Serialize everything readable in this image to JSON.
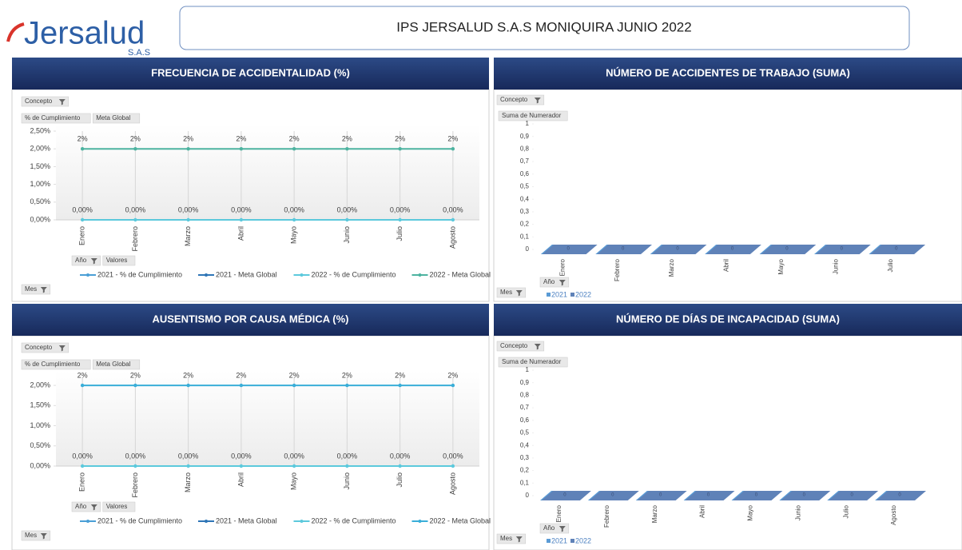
{
  "header": {
    "logo": "Jersalud",
    "logo_sub": "S.A.S",
    "title": "IPS JERSALUD S.A.S MONIQUIRA  JUNIO 2022"
  },
  "chart_data": [
    {
      "type": "line",
      "title": "FRECUENCIA DE ACCIDENTALIDAD (%)",
      "buttons": {
        "top": "Concepto",
        "fields": [
          "% de Cumplimiento",
          "Meta Global"
        ],
        "year": "Año",
        "values": "Valores",
        "month": "Mes"
      },
      "categories": [
        "Enero",
        "Febrero",
        "Marzo",
        "Abril",
        "Mayo",
        "Junio",
        "Julio",
        "Agosto"
      ],
      "ylim": [
        0,
        2.5
      ],
      "yticks": [
        {
          "value": 0,
          "label": "0,00%"
        },
        {
          "value": 0.5,
          "label": "0,50%"
        },
        {
          "value": 1,
          "label": "1,00%"
        },
        {
          "value": 1.5,
          "label": "1,50%"
        },
        {
          "value": 2,
          "label": "2,00%"
        },
        {
          "value": 2.5,
          "label": "2,50%"
        }
      ],
      "series": [
        {
          "name": "2021 - % de Cumplimiento",
          "color": "#4a9fd6",
          "values": [
            null,
            null,
            null,
            null,
            null,
            null,
            null,
            null
          ]
        },
        {
          "name": "2021 - Meta Global",
          "color": "#2e75b6",
          "values": [
            null,
            null,
            null,
            null,
            null,
            null,
            null,
            null
          ]
        },
        {
          "name": "2022 - % de Cumplimiento",
          "color": "#5cc9dc",
          "values": [
            0,
            0,
            0,
            0,
            0,
            0,
            0,
            0
          ],
          "value_labels": [
            "0,00%",
            "0,00%",
            "0,00%",
            "0,00%",
            "0,00%",
            "0,00%",
            "0,00%",
            "0,00%"
          ]
        },
        {
          "name": "2022 - Meta Global",
          "color": "#4db3a0",
          "values": [
            2,
            2,
            2,
            2,
            2,
            2,
            2,
            2
          ],
          "value_labels": [
            "2%",
            "2%",
            "2%",
            "2%",
            "2%",
            "2%",
            "2%",
            "2%"
          ]
        }
      ]
    },
    {
      "type": "bar",
      "title": "NÚMERO DE ACCIDENTES DE TRABAJO  (SUMA)",
      "buttons": {
        "top": "Concepto",
        "fields": [
          "Suma de Numerador"
        ],
        "year": "Año",
        "month": "Mes"
      },
      "categories": [
        "Enero",
        "Febrero",
        "Marzo",
        "Abril",
        "Mayo",
        "Junio",
        "Julio"
      ],
      "ylim": [
        0,
        1
      ],
      "yticks": [
        0,
        {
          "value": 0.1,
          "label": "0,1"
        },
        {
          "value": 0.2,
          "label": "0,2"
        },
        {
          "value": 0.3,
          "label": "0,3"
        },
        {
          "value": 0.4,
          "label": "0,4"
        },
        {
          "value": 0.5,
          "label": "0,5"
        },
        {
          "value": 0.6,
          "label": "0,6"
        },
        {
          "value": 0.7,
          "label": "0,7"
        },
        {
          "value": 0.8,
          "label": "0,8"
        },
        {
          "value": 0.9,
          "label": "0,9"
        },
        1
      ],
      "series": [
        {
          "name": "2021",
          "color": "#5b9bd5",
          "values": [
            0,
            0,
            0,
            0,
            0,
            0,
            0
          ]
        },
        {
          "name": "2022",
          "color": "#5f82b8",
          "values": [
            0,
            0,
            0,
            0,
            0,
            0,
            0
          ]
        }
      ]
    },
    {
      "type": "line",
      "title": "AUSENTISMO POR CAUSA MÉDICA (%)",
      "buttons": {
        "top": "Concepto",
        "fields": [
          "% de Cumplimiento",
          "Meta Global"
        ],
        "year": "Año",
        "values": "Valores",
        "month": "Mes"
      },
      "categories": [
        "Enero",
        "Febrero",
        "Marzo",
        "Abril",
        "Mayo",
        "Junio",
        "Julio",
        "Agosto"
      ],
      "ylim": [
        0,
        2.2
      ],
      "yticks": [
        {
          "value": 0,
          "label": "0,00%"
        },
        {
          "value": 0.5,
          "label": "0,50%"
        },
        {
          "value": 1,
          "label": "1,00%"
        },
        {
          "value": 1.5,
          "label": "1,50%"
        },
        {
          "value": 2,
          "label": "2,00%"
        }
      ],
      "series": [
        {
          "name": "2021 - % de Cumplimiento",
          "color": "#4a9fd6",
          "values": [
            null,
            null,
            null,
            null,
            null,
            null,
            null,
            null
          ]
        },
        {
          "name": "2021 - Meta Global",
          "color": "#2e75b6",
          "values": [
            null,
            null,
            null,
            null,
            null,
            null,
            null,
            null
          ]
        },
        {
          "name": "2022 - % de Cumplimiento",
          "color": "#5cc9dc",
          "values": [
            0,
            0,
            0,
            0,
            0,
            0,
            0,
            0
          ],
          "value_labels": [
            "0,00%",
            "0,00%",
            "0,00%",
            "0,00%",
            "0,00%",
            "0,00%",
            "0,00%",
            "0,00%"
          ]
        },
        {
          "name": "2022 - Meta Global",
          "color": "#3aaed8",
          "values": [
            2,
            2,
            2,
            2,
            2,
            2,
            2,
            2
          ],
          "value_labels": [
            "2%",
            "2%",
            "2%",
            "2%",
            "2%",
            "2%",
            "2%",
            "2%"
          ]
        }
      ]
    },
    {
      "type": "bar",
      "title": "NÚMERO DE DÍAS DE INCAPACIDAD (SUMA)",
      "buttons": {
        "top": "Concepto",
        "fields": [
          "Suma de Numerador"
        ],
        "year": "Año",
        "month": "Mes"
      },
      "categories": [
        "Enero",
        "Febrero",
        "Marzo",
        "Abril",
        "Mayo",
        "Junio",
        "Julio",
        "Agosto"
      ],
      "ylim": [
        0,
        1
      ],
      "yticks": [
        0,
        {
          "value": 0.1,
          "label": "0,1"
        },
        {
          "value": 0.2,
          "label": "0,2"
        },
        {
          "value": 0.3,
          "label": "0,3"
        },
        {
          "value": 0.4,
          "label": "0,4"
        },
        {
          "value": 0.5,
          "label": "0,5"
        },
        {
          "value": 0.6,
          "label": "0,6"
        },
        {
          "value": 0.7,
          "label": "0,7"
        },
        {
          "value": 0.8,
          "label": "0,8"
        },
        {
          "value": 0.9,
          "label": "0,9"
        },
        1
      ],
      "series": [
        {
          "name": "2021",
          "color": "#5b9bd5",
          "values": [
            0,
            0,
            0,
            0,
            0,
            0,
            0,
            0
          ]
        },
        {
          "name": "2022",
          "color": "#5f82b8",
          "values": [
            0,
            0,
            0,
            0,
            0,
            0,
            0,
            0
          ]
        }
      ]
    }
  ]
}
